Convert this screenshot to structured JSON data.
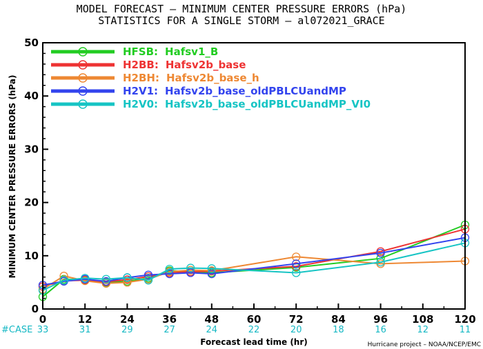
{
  "header": {
    "title_line1": "MODEL FORECAST – MINIMUM CENTER PRESSURE ERRORS (hPa)",
    "title_line2": "STATISTICS FOR A SINGLE STORM – al072021_GRACE"
  },
  "footer": {
    "case_label": "#CASE",
    "credit": "Hurricane project – NOAA/NCEP/EMC"
  },
  "chart_data": {
    "type": "line",
    "ylabel": "MINIMUM CENTER PRESSURE ERRORS (hPa)",
    "xlabel": "Forecast lead time (hr)",
    "xlim": [
      0,
      120
    ],
    "ylim": [
      0,
      50
    ],
    "x_ticks": [
      "0",
      "12",
      "24",
      "36",
      "48",
      "60",
      "72",
      "84",
      "96",
      "108",
      "120"
    ],
    "y_ticks": [
      "0",
      "10",
      "20",
      "30",
      "40",
      "50"
    ],
    "grid": false,
    "legend_position": "top-left",
    "case_counts": [
      {
        "x": 0,
        "label": "33"
      },
      {
        "x": 12,
        "label": "31"
      },
      {
        "x": 24,
        "label": "29"
      },
      {
        "x": 36,
        "label": "27"
      },
      {
        "x": 48,
        "label": "24"
      },
      {
        "x": 60,
        "label": "22"
      },
      {
        "x": 72,
        "label": "20"
      },
      {
        "x": 84,
        "label": "18"
      },
      {
        "x": 96,
        "label": "16"
      },
      {
        "x": 108,
        "label": "12"
      },
      {
        "x": 120,
        "label": "11"
      }
    ],
    "series": [
      {
        "code": "HFSB:",
        "name": "Hafsv1_B",
        "color": "#22cc22",
        "x": [
          0,
          6,
          12,
          18,
          24,
          30,
          36,
          42,
          48,
          72,
          96,
          120
        ],
        "y": [
          2.3,
          5.6,
          5.5,
          5.0,
          5.2,
          5.8,
          7.2,
          7.0,
          6.8,
          7.8,
          9.5,
          15.8
        ]
      },
      {
        "code": "H2BB:",
        "name": "Hafsv2b_base",
        "color": "#ee3333",
        "x": [
          0,
          6,
          12,
          18,
          24,
          30,
          36,
          42,
          48,
          72,
          96,
          120
        ],
        "y": [
          4.2,
          5.3,
          5.4,
          5.1,
          5.5,
          6.1,
          6.8,
          7.0,
          7.1,
          8.0,
          10.8,
          15.0
        ]
      },
      {
        "code": "H2BH:",
        "name": "Hafsv2b_base_h",
        "color": "#ee8833",
        "x": [
          0,
          6,
          12,
          18,
          24,
          30,
          36,
          42,
          48,
          72,
          96,
          120
        ],
        "y": [
          3.7,
          6.2,
          5.3,
          4.8,
          5.0,
          5.6,
          7.0,
          7.3,
          7.2,
          9.8,
          8.5,
          9.0
        ]
      },
      {
        "code": "H2V1:",
        "name": "Hafsv2b_base_oldPBLCUandMP",
        "color": "#3344ee",
        "x": [
          0,
          6,
          12,
          18,
          24,
          30,
          36,
          42,
          48,
          72,
          96,
          120
        ],
        "y": [
          4.5,
          5.2,
          5.6,
          5.2,
          5.9,
          6.4,
          6.6,
          6.8,
          6.6,
          8.5,
          10.5,
          13.4
        ]
      },
      {
        "code": "H2V0:",
        "name": "Hafsv2b_base_oldPBLCUandMP_VI0",
        "color": "#16c4c4",
        "x": [
          0,
          6,
          12,
          18,
          24,
          30,
          36,
          42,
          48,
          72,
          96,
          120
        ],
        "y": [
          3.5,
          5.4,
          5.8,
          5.6,
          5.9,
          5.4,
          7.5,
          7.7,
          7.6,
          6.8,
          8.8,
          12.4
        ]
      }
    ]
  }
}
